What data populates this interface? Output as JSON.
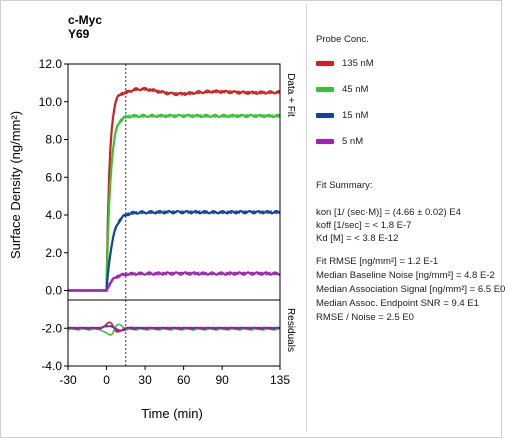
{
  "chart_data": {
    "type": "line",
    "title": "c-Myc",
    "subtitle": "Y69",
    "xlabel": "Time (min)",
    "ylabel": "Surface Density (ng/mm²)",
    "xlim": [
      -30,
      135
    ],
    "ylim": [
      -4.0,
      12.0
    ],
    "x_ticks": [
      "-30",
      "0",
      "30",
      "60",
      "90",
      "135"
    ],
    "x_tick_values": [
      -30,
      0,
      30,
      60,
      90,
      135
    ],
    "y_ticks": [
      "12.0",
      "10.0",
      "8.0",
      "6.0",
      "4.0",
      "2.0",
      "0.0",
      "-2.0",
      "-4.0"
    ],
    "y_tick_values": [
      12,
      10,
      8,
      6,
      4,
      2,
      0,
      -2,
      -4
    ],
    "injection_x": 15,
    "right_labels": {
      "upper": "Data + Fit",
      "lower": "Residuals"
    },
    "upper_ylim": [
      -0.5,
      12.0
    ],
    "residual_ylim": [
      -4.0,
      0.0
    ],
    "series": [
      {
        "name": "135 nM",
        "color": "#d21f1f",
        "plateau": 10.5,
        "k": 0.42,
        "ring": 0.25,
        "residual_offset": -2.0
      },
      {
        "name": "45 nM",
        "color": "#38c238",
        "plateau": 9.25,
        "k": 0.33,
        "ring": 0.0,
        "residual_offset": -2.05
      },
      {
        "name": "15 nM",
        "color": "#17429a",
        "plateau": 4.15,
        "k": 0.22,
        "ring": 0.0,
        "residual_offset": -2.0
      },
      {
        "name": "5 nM",
        "color": "#a21fb8",
        "plateau": 0.9,
        "k": 0.2,
        "ring": 0.0,
        "residual_offset": -2.0
      }
    ]
  },
  "legend": {
    "title": "Probe Conc."
  },
  "fit_summary": {
    "title": "Fit Summary:",
    "lines": [
      "kon  [1/ (sec·M)]  =  (4.66 ± 0.02) E4",
      "koff  [1/sec]  =  < 1.8 E-7",
      "Kd  [M]  =  < 3.8 E-12",
      "Fit RMSE [ng/mm²]  =  1.2 E-1",
      "Median Baseline Noise [ng/mm²]  =  4.8 E-2",
      "Median Association Signal [ng/mm²]  =  6.5 E0",
      "Median Assoc. Endpoint SNR  =  9.4 E1",
      "RMSE / Noise  =  2.5 E0"
    ]
  }
}
